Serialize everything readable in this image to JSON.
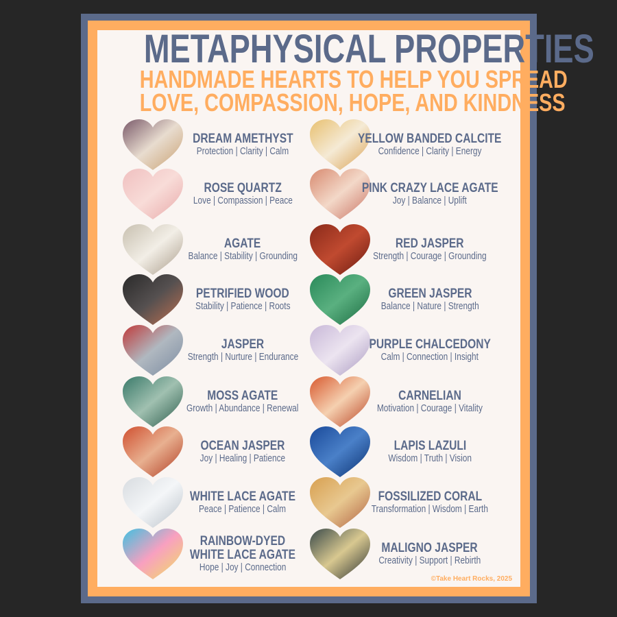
{
  "title": "METAPHYSICAL PROPERTIES",
  "subtitle_lines": [
    "HANDMADE HEARTS TO HELP YOU SPREAD",
    "LOVE, COMPASSION, HOPE, AND KINDNESS"
  ],
  "colors": {
    "background": "#262626",
    "frame": "#5b6a8a",
    "accent": "#ffad60",
    "paper": "#faf5f2"
  },
  "stones": [
    {
      "name": "DREAM AMETHYST",
      "properties": "Protection | Clarity | Calm",
      "colors": [
        "#7a5a6a",
        "#e8dccf",
        "#c9a070"
      ]
    },
    {
      "name": "YELLOW BANDED CALCITE",
      "properties": "Confidence | Clarity | Energy",
      "colors": [
        "#e8c070",
        "#f5ead5",
        "#d9a050"
      ]
    },
    {
      "name": "ROSE QUARTZ",
      "properties": "Love | Compassion | Peace",
      "colors": [
        "#f0c0c0",
        "#f8dcd8",
        "#e8a8a8"
      ]
    },
    {
      "name": "PINK CRAZY LACE AGATE",
      "properties": "Joy | Balance | Uplift",
      "colors": [
        "#d88a70",
        "#f3d8c8",
        "#c87060"
      ]
    },
    {
      "name": "AGATE",
      "properties": "Balance | Stability | Grounding",
      "colors": [
        "#c8c0b0",
        "#f2eee6",
        "#a89a88"
      ]
    },
    {
      "name": "RED JASPER",
      "properties": "Strength | Courage | Grounding",
      "colors": [
        "#8a2a1a",
        "#c04a30",
        "#6a1a10"
      ]
    },
    {
      "name": "PETRIFIED WOOD",
      "properties": "Stability | Patience | Roots",
      "colors": [
        "#2a2a2a",
        "#555050",
        "#c07050"
      ]
    },
    {
      "name": "GREEN JASPER",
      "properties": "Balance | Nature | Strength",
      "colors": [
        "#2a8a5a",
        "#5ab080",
        "#1a6a40"
      ]
    },
    {
      "name": "JASPER",
      "properties": "Strength | Nurture | Endurance",
      "colors": [
        "#c03a3a",
        "#b0b8c0",
        "#7a8aa0"
      ]
    },
    {
      "name": "PURPLE CHALCEDONY",
      "properties": "Calm | Connection | Insight",
      "colors": [
        "#c8b8d8",
        "#ece4f0",
        "#a898c0"
      ]
    },
    {
      "name": "MOSS AGATE",
      "properties": "Growth | Abundance | Renewal",
      "colors": [
        "#3a7a6a",
        "#a0c0b0",
        "#2a5a4a"
      ]
    },
    {
      "name": "CARNELIAN",
      "properties": "Motivation | Courage | Vitality",
      "colors": [
        "#d85a30",
        "#f5d0b0",
        "#b84020"
      ]
    },
    {
      "name": "OCEAN JASPER",
      "properties": "Joy | Healing | Patience",
      "colors": [
        "#d05030",
        "#e8b090",
        "#b03a20"
      ]
    },
    {
      "name": "LAPIS LAZULI",
      "properties": "Wisdom | Truth | Vision",
      "colors": [
        "#1a4a9a",
        "#4a80c8",
        "#0a3070"
      ]
    },
    {
      "name": "WHITE LACE AGATE",
      "properties": "Peace | Patience | Calm",
      "colors": [
        "#d8dce0",
        "#f4f6f8",
        "#b8c0c8"
      ]
    },
    {
      "name": "FOSSILIZED CORAL",
      "properties": "Transformation | Wisdom | Earth",
      "colors": [
        "#d8a050",
        "#e8c890",
        "#b06040"
      ]
    },
    {
      "name": "RAINBOW-DYED\nWHITE LACE AGATE",
      "properties": "Hope | Joy | Connection",
      "colors": [
        "#40c0e0",
        "#f8a0c0",
        "#f0e060"
      ]
    },
    {
      "name": "MALIGNO JASPER",
      "properties": "Creativity | Support | Rebirth",
      "colors": [
        "#3a4a4a",
        "#d8c890",
        "#2a3030"
      ]
    }
  ],
  "copyright": "©Take Heart Rocks, 2025"
}
